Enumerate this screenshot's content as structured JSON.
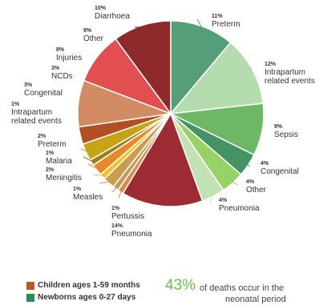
{
  "chart_data": {
    "type": "pie",
    "start_angle_deg": 0,
    "direction": "clockwise",
    "slices": [
      {
        "pct": "11%",
        "label_lines": [
          "Preterm"
        ],
        "value": 11,
        "color": "#549f78",
        "group": "newborn"
      },
      {
        "pct": "12%",
        "label_lines": [
          "Intrapartum",
          "related events"
        ],
        "value": 12,
        "color": "#b5dcaf",
        "group": "newborn"
      },
      {
        "pct": "9%",
        "label_lines": [
          "Sepsis"
        ],
        "value": 9,
        "color": "#6db865",
        "group": "newborn"
      },
      {
        "pct": "4%",
        "label_lines": [
          "Congenital"
        ],
        "value": 4,
        "color": "#459264",
        "group": "newborn"
      },
      {
        "pct": "4%",
        "label_lines": [
          "Other"
        ],
        "value": 4,
        "color": "#97d266",
        "group": "newborn"
      },
      {
        "pct": "4%",
        "label_lines": [
          "Pneumonia"
        ],
        "value": 4,
        "color": "#c2e2b4",
        "group": "newborn"
      },
      {
        "pct": "14%",
        "label_lines": [
          "Pneumonia"
        ],
        "value": 14,
        "color": "#9e2b34",
        "group": "child"
      },
      {
        "pct": "1%",
        "label_lines": [
          "Pertussis"
        ],
        "value": 1,
        "color": "#d98a4c",
        "group": "child"
      },
      {
        "pct": "1%",
        "label_lines": [
          "Measles"
        ],
        "value": 1,
        "color": "#c49a62",
        "group": "child"
      },
      {
        "pct": "2%",
        "label_lines": [
          "Meningitis"
        ],
        "value": 2,
        "color": "#ca9c4d",
        "group": "child"
      },
      {
        "pct": "1%",
        "label_lines": [
          "Malaria"
        ],
        "value": 1,
        "color": "#f2c22a",
        "group": "child"
      },
      {
        "pct": "2%",
        "label_lines": [
          "Preterm"
        ],
        "value": 2,
        "color": "#e88a2c",
        "group": "child"
      },
      {
        "pct": "1%",
        "label_lines": [
          "Intrapartum",
          "related events"
        ],
        "value": 1,
        "color": "#9b7f1d",
        "group": "child"
      },
      {
        "pct": "3%",
        "label_lines": [
          "Congenital"
        ],
        "value": 3,
        "color": "#c7a316",
        "group": "child"
      },
      {
        "pct": "3%",
        "label_lines": [
          "NCDs"
        ],
        "value": 3,
        "color": "#b24f24",
        "group": "child"
      },
      {
        "pct": "8%",
        "label_lines": [
          "Injuries"
        ],
        "value": 8,
        "color": "#d28c63",
        "group": "child"
      },
      {
        "pct": "9%",
        "label_lines": [
          "Other"
        ],
        "value": 9,
        "color": "#e14f50",
        "group": "child"
      },
      {
        "pct": "10%",
        "label_lines": [
          "Diarrhoea"
        ],
        "value": 10,
        "color": "#8e2a2b",
        "group": "child"
      }
    ]
  },
  "legend": [
    {
      "label": "Children ages 1-59 months",
      "color": "#b7582a"
    },
    {
      "label": "Newborns ages 0-27 days",
      "color": "#2e8b57"
    }
  ],
  "stat": {
    "number": "43%",
    "text_line1": "of deaths occur in the",
    "text_line2": "neonatal period"
  }
}
